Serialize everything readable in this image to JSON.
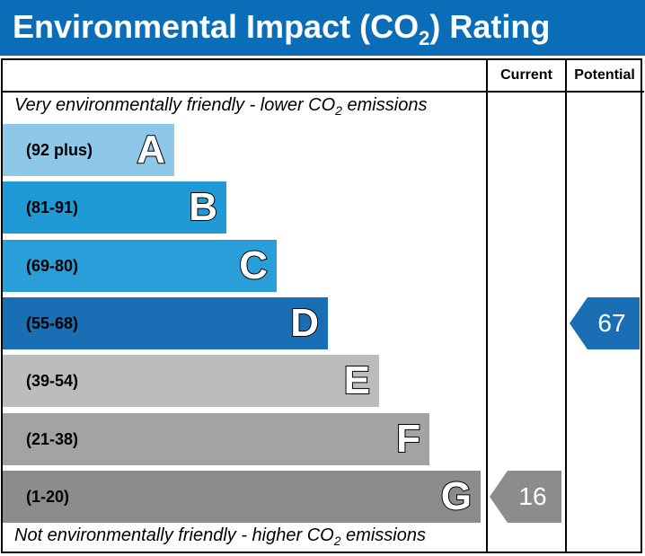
{
  "header": {
    "title_prefix": "Environmental Impact (CO",
    "title_sub": "2",
    "title_suffix": ") Rating"
  },
  "columns": {
    "current": "Current",
    "potential": "Potential"
  },
  "captions": {
    "top_prefix": "Very environmentally friendly - lower CO",
    "top_sub": "2",
    "top_suffix": " emissions",
    "bottom_prefix": "Not environmentally friendly - higher CO",
    "bottom_sub": "2",
    "bottom_suffix": " emissions"
  },
  "chart_data": {
    "type": "bar",
    "categories": [
      "A",
      "B",
      "C",
      "D",
      "E",
      "F",
      "G"
    ],
    "ranges": [
      "(92 plus)",
      "(81-91)",
      "(69-80)",
      "(55-68)",
      "(39-54)",
      "(21-38)",
      "(1-20)"
    ],
    "colors": [
      "#8dc8e8",
      "#1f9ad6",
      "#2a9ed8",
      "#1a6fb4",
      "#bcbcbc",
      "#a3a3a4",
      "#8c8c8c"
    ],
    "current": {
      "value": 16,
      "band": "G",
      "color": "#8c8c8c"
    },
    "potential": {
      "value": 67,
      "band": "D",
      "color": "#1a6fb4"
    }
  }
}
